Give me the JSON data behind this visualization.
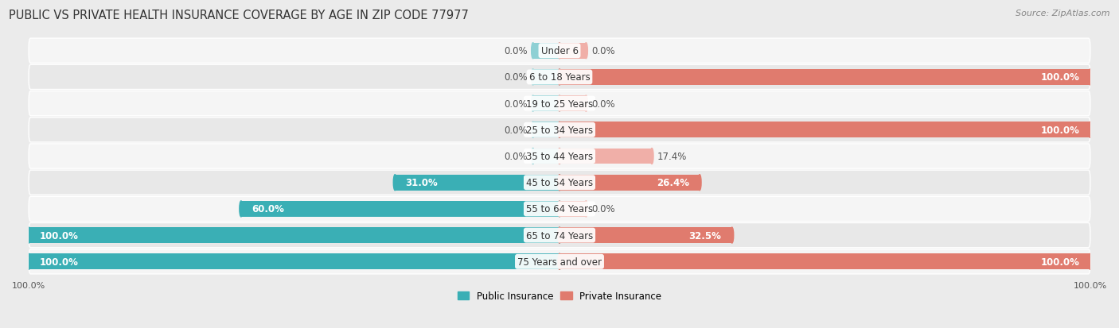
{
  "title": "PUBLIC VS PRIVATE HEALTH INSURANCE COVERAGE BY AGE IN ZIP CODE 77977",
  "source": "Source: ZipAtlas.com",
  "categories": [
    "Under 6",
    "6 to 18 Years",
    "19 to 25 Years",
    "25 to 34 Years",
    "35 to 44 Years",
    "45 to 54 Years",
    "55 to 64 Years",
    "65 to 74 Years",
    "75 Years and over"
  ],
  "public_values": [
    0.0,
    0.0,
    0.0,
    0.0,
    0.0,
    31.0,
    60.0,
    100.0,
    100.0
  ],
  "private_values": [
    0.0,
    100.0,
    0.0,
    100.0,
    17.4,
    26.4,
    0.0,
    32.5,
    100.0
  ],
  "public_color": "#3AAFB5",
  "private_color": "#E07B6E",
  "public_color_light": "#8ED0D4",
  "private_color_light": "#F0AFA8",
  "bar_height": 0.6,
  "bg_color": "#EBEBEB",
  "row_bg_even": "#F5F5F5",
  "row_bg_odd": "#E8E8E8",
  "max_value": 100.0,
  "title_fontsize": 10.5,
  "label_fontsize": 8.5,
  "cat_fontsize": 8.5,
  "tick_fontsize": 8,
  "source_fontsize": 8,
  "inside_label_color": "#FFFFFF",
  "outside_label_color": "#555555",
  "stub_size": 5.0,
  "inside_threshold": 20.0
}
